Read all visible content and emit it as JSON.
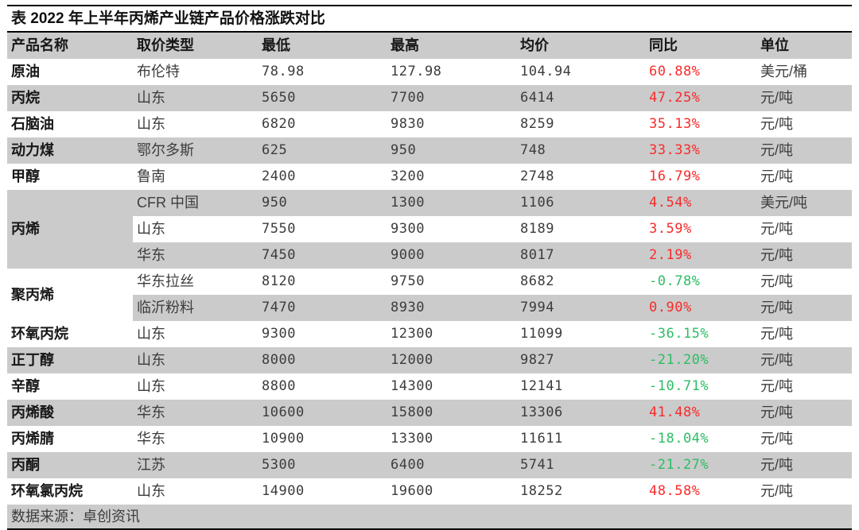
{
  "title": "表 2022 年上半年丙烯产业链产品价格涨跌对比",
  "table": {
    "columns": [
      "产品名称",
      "取价类型",
      "最低",
      "最高",
      "均价",
      "同比",
      "单位"
    ],
    "rows": [
      {
        "product": "原油",
        "span": 1,
        "type": "布伦特",
        "low": "78.98",
        "high": "127.98",
        "avg": "104.94",
        "yoy": "60.88%",
        "unit": "美元/桶"
      },
      {
        "product": "丙烷",
        "span": 1,
        "type": "山东",
        "low": "5650",
        "high": "7700",
        "avg": "6414",
        "yoy": "47.25%",
        "unit": "元/吨"
      },
      {
        "product": "石脑油",
        "span": 1,
        "type": "山东",
        "low": "6820",
        "high": "9830",
        "avg": "8259",
        "yoy": "35.13%",
        "unit": "元/吨"
      },
      {
        "product": "动力煤",
        "span": 1,
        "type": "鄂尔多斯",
        "low": "625",
        "high": "950",
        "avg": "748",
        "yoy": "33.33%",
        "unit": "元/吨"
      },
      {
        "product": "甲醇",
        "span": 1,
        "type": "鲁南",
        "low": "2400",
        "high": "3200",
        "avg": "2748",
        "yoy": "16.79%",
        "unit": "元/吨"
      },
      {
        "product": "丙烯",
        "span": 3,
        "type": "CFR 中国",
        "low": "950",
        "high": "1300",
        "avg": "1106",
        "yoy": "4.54%",
        "unit": "美元/吨"
      },
      {
        "type": "山东",
        "low": "7550",
        "high": "9300",
        "avg": "8189",
        "yoy": "3.59%",
        "unit": "元/吨"
      },
      {
        "type": "华东",
        "low": "7450",
        "high": "9000",
        "avg": "8017",
        "yoy": "2.19%",
        "unit": "元/吨"
      },
      {
        "product": "聚丙烯",
        "span": 2,
        "type": "华东拉丝",
        "low": "8120",
        "high": "9750",
        "avg": "8682",
        "yoy": "-0.78%",
        "unit": "元/吨"
      },
      {
        "type": "临沂粉料",
        "low": "7470",
        "high": "8930",
        "avg": "7994",
        "yoy": "0.90%",
        "unit": "元/吨"
      },
      {
        "product": "环氧丙烷",
        "span": 1,
        "type": "山东",
        "low": "9300",
        "high": "12300",
        "avg": "11099",
        "yoy": "-36.15%",
        "unit": "元/吨"
      },
      {
        "product": "正丁醇",
        "span": 1,
        "type": "山东",
        "low": "8000",
        "high": "12000",
        "avg": "9827",
        "yoy": "-21.20%",
        "unit": "元/吨"
      },
      {
        "product": "辛醇",
        "span": 1,
        "type": "山东",
        "low": "8800",
        "high": "14300",
        "avg": "12141",
        "yoy": "-10.71%",
        "unit": "元/吨"
      },
      {
        "product": "丙烯酸",
        "span": 1,
        "type": "华东",
        "low": "10600",
        "high": "15800",
        "avg": "13306",
        "yoy": "41.48%",
        "unit": "元/吨"
      },
      {
        "product": "丙烯腈",
        "span": 1,
        "type": "华东",
        "low": "10900",
        "high": "13300",
        "avg": "11611",
        "yoy": "-18.04%",
        "unit": "元/吨"
      },
      {
        "product": "丙酮",
        "span": 1,
        "type": "江苏",
        "low": "5300",
        "high": "6400",
        "avg": "5741",
        "yoy": "-21.27%",
        "unit": "元/吨"
      },
      {
        "product": "环氧氯丙烷",
        "span": 1,
        "type": "山东",
        "low": "14900",
        "high": "19600",
        "avg": "18252",
        "yoy": "48.58%",
        "unit": "元/吨"
      }
    ],
    "footer": "数据来源：卓创资讯"
  },
  "colors": {
    "positive": "#f92b2b",
    "negative": "#2dbd64",
    "stripe": "#cbcbcb"
  }
}
